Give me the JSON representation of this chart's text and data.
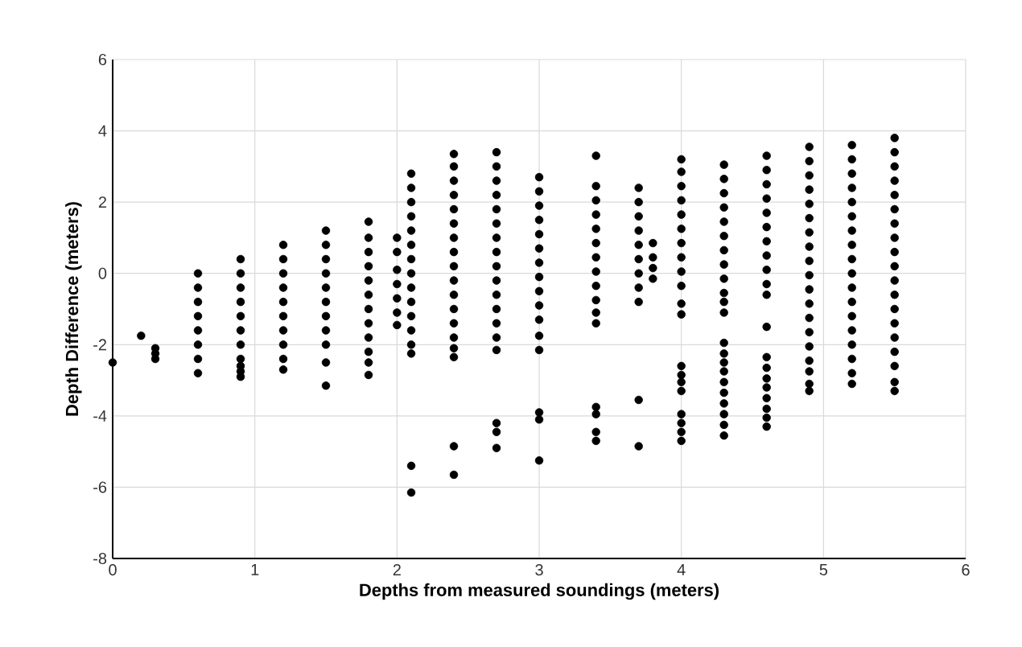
{
  "chart_data": {
    "type": "scatter",
    "xlabel": "Depths from measured soundings (meters)",
    "ylabel": "Depth Difference (meters)",
    "xlim": [
      0,
      6
    ],
    "xticks": [
      0,
      1,
      2,
      3,
      4,
      5,
      6
    ],
    "ylim": [
      -8,
      6
    ],
    "yticks": [
      -8,
      -6,
      -4,
      -2,
      0,
      2,
      4,
      6
    ],
    "grid": true,
    "legend": false,
    "series": [
      {
        "color": "#000000",
        "x": [
          0
        ],
        "values": [
          -2.5
        ]
      },
      {
        "color": "#000000",
        "x": [
          0.2
        ],
        "values": [
          -1.75
        ]
      },
      {
        "color": "#000000",
        "x": [
          0.3,
          0.3,
          0.3
        ],
        "values": [
          -2.1,
          -2.25,
          -2.4
        ]
      },
      {
        "color": "#000000",
        "x": [
          0.6,
          0.6,
          0.6,
          0.6,
          0.6,
          0.6,
          0.6,
          0.6
        ],
        "values": [
          0,
          -0.4,
          -0.8,
          -1.2,
          -1.6,
          -2,
          -2.4,
          -2.8
        ]
      },
      {
        "color": "#000000",
        "x": [
          0.9,
          0.9,
          0.9,
          0.9,
          0.9,
          0.9,
          0.9,
          0.9,
          0.9,
          0.9,
          0.9
        ],
        "values": [
          0.4,
          0,
          -0.4,
          -0.8,
          -1.2,
          -1.6,
          -2,
          -2.4,
          -2.6,
          -2.75,
          -2.9
        ]
      },
      {
        "color": "#000000",
        "x": [
          1.2,
          1.2,
          1.2,
          1.2,
          1.2,
          1.2,
          1.2,
          1.2,
          1.2,
          1.2
        ],
        "values": [
          0.8,
          0.4,
          0,
          -0.4,
          -0.8,
          -1.2,
          -1.6,
          -2,
          -2.4,
          -2.7
        ]
      },
      {
        "color": "#000000",
        "x": [
          1.5,
          1.5,
          1.5,
          1.5,
          1.5,
          1.5,
          1.5,
          1.5,
          1.5,
          1.5,
          1.5
        ],
        "values": [
          1.2,
          0.8,
          0.4,
          0,
          -0.4,
          -0.8,
          -1.2,
          -1.6,
          -2,
          -2.5,
          -3.15
        ]
      },
      {
        "color": "#000000",
        "x": [
          1.8,
          1.8,
          1.8,
          1.8,
          1.8,
          1.8,
          1.8,
          1.8,
          1.8,
          1.8,
          1.8,
          1.8
        ],
        "values": [
          1.45,
          1,
          0.6,
          0.2,
          -0.2,
          -0.6,
          -1,
          -1.4,
          -1.8,
          -2.2,
          -2.5,
          -2.85
        ]
      },
      {
        "color": "#000000",
        "x": [
          2.0,
          2.0,
          2.0,
          2.0,
          2.0,
          2.0,
          2.0
        ],
        "values": [
          1,
          0.6,
          0.1,
          -0.3,
          -0.7,
          -1.1,
          -1.45
        ]
      },
      {
        "color": "#000000",
        "x": [
          2.1,
          2.1,
          2.1,
          2.1,
          2.1,
          2.1,
          2.1,
          2.1,
          2.1,
          2.1,
          2.1,
          2.1,
          2.1,
          2.1,
          2.1,
          2.1
        ],
        "values": [
          2.8,
          2.4,
          2,
          1.6,
          1.2,
          0.8,
          0.4,
          0,
          -0.4,
          -0.8,
          -1.2,
          -1.6,
          -2,
          -2.25,
          -5.4,
          -6.15
        ]
      },
      {
        "color": "#000000",
        "x": [
          2.4,
          2.4,
          2.4,
          2.4,
          2.4,
          2.4,
          2.4,
          2.4,
          2.4,
          2.4,
          2.4,
          2.4,
          2.4,
          2.4,
          2.4,
          2.4,
          2.4,
          2.4
        ],
        "values": [
          3.35,
          3,
          2.6,
          2.2,
          1.8,
          1.4,
          1,
          0.6,
          0.2,
          -0.2,
          -0.6,
          -1,
          -1.4,
          -1.8,
          -2.1,
          -2.35,
          -4.85,
          -5.65
        ]
      },
      {
        "color": "#000000",
        "x": [
          2.7,
          2.7,
          2.7,
          2.7,
          2.7,
          2.7,
          2.7,
          2.7,
          2.7,
          2.7,
          2.7,
          2.7,
          2.7,
          2.7,
          2.7,
          2.7,
          2.7,
          2.7
        ],
        "values": [
          3.4,
          3,
          2.6,
          2.2,
          1.8,
          1.4,
          1,
          0.6,
          0.2,
          -0.2,
          -0.6,
          -1,
          -1.4,
          -1.8,
          -2.15,
          -4.2,
          -4.45,
          -4.9
        ]
      },
      {
        "color": "#000000",
        "x": [
          3.0,
          3.0,
          3.0,
          3.0,
          3.0,
          3.0,
          3.0,
          3.0,
          3.0,
          3.0,
          3.0,
          3.0,
          3.0,
          3.0,
          3.0,
          3.0
        ],
        "values": [
          2.7,
          2.3,
          1.9,
          1.5,
          1.1,
          0.7,
          0.3,
          -0.1,
          -0.5,
          -0.9,
          -1.3,
          -1.75,
          -2.15,
          -3.9,
          -4.1,
          -5.25
        ]
      },
      {
        "color": "#000000",
        "x": [
          3.4,
          3.4,
          3.4,
          3.4,
          3.4,
          3.4,
          3.4,
          3.4,
          3.4,
          3.4,
          3.4,
          3.4,
          3.4,
          3.4,
          3.4,
          3.4
        ],
        "values": [
          3.3,
          2.45,
          2.05,
          1.65,
          1.25,
          0.85,
          0.45,
          0.05,
          -0.35,
          -0.75,
          -1.1,
          -1.4,
          -3.75,
          -3.95,
          -4.45,
          -4.7
        ]
      },
      {
        "color": "#000000",
        "x": [
          3.7,
          3.7,
          3.7,
          3.7,
          3.7,
          3.7,
          3.7,
          3.7,
          3.7,
          3.7,
          3.7
        ],
        "values": [
          2.4,
          2,
          1.6,
          1.2,
          0.8,
          0.4,
          0,
          -0.4,
          -0.8,
          -3.55,
          -4.85
        ]
      },
      {
        "color": "#000000",
        "x": [
          3.8,
          3.8,
          3.8,
          3.8
        ],
        "values": [
          0.85,
          0.45,
          0.15,
          -0.15
        ]
      },
      {
        "color": "#000000",
        "x": [
          4.0,
          4.0,
          4.0,
          4.0,
          4.0,
          4.0,
          4.0,
          4.0,
          4.0,
          4.0,
          4.0,
          4.0,
          4.0,
          4.0,
          4.0,
          4.0,
          4.0,
          4.0,
          4.0,
          4.0
        ],
        "values": [
          3.2,
          2.85,
          2.45,
          2.05,
          1.65,
          1.25,
          0.85,
          0.45,
          0.05,
          -0.35,
          -0.85,
          -1.15,
          -2.6,
          -2.85,
          -3.05,
          -3.3,
          -3.95,
          -4.2,
          -4.45,
          -4.7
        ]
      },
      {
        "color": "#000000",
        "x": [
          4.3,
          4.3,
          4.3,
          4.3,
          4.3,
          4.3,
          4.3,
          4.3,
          4.3,
          4.3,
          4.3,
          4.3,
          4.3,
          4.3,
          4.3,
          4.3,
          4.3,
          4.3,
          4.3,
          4.3,
          4.3,
          4.3
        ],
        "values": [
          3.05,
          2.65,
          2.25,
          1.85,
          1.45,
          1.05,
          0.65,
          0.25,
          -0.15,
          -0.55,
          -0.8,
          -1.1,
          -1.95,
          -2.25,
          -2.5,
          -2.75,
          -3.05,
          -3.35,
          -3.65,
          -3.95,
          -4.25,
          -4.55
        ]
      },
      {
        "color": "#000000",
        "x": [
          4.6,
          4.6,
          4.6,
          4.6,
          4.6,
          4.6,
          4.6,
          4.6,
          4.6,
          4.6,
          4.6,
          4.6,
          4.6,
          4.6,
          4.6,
          4.6,
          4.6,
          4.6,
          4.6,
          4.6
        ],
        "values": [
          3.3,
          2.9,
          2.5,
          2.1,
          1.7,
          1.3,
          0.9,
          0.5,
          0.1,
          -0.3,
          -0.6,
          -1.5,
          -2.35,
          -2.65,
          -2.95,
          -3.2,
          -3.5,
          -3.8,
          -4.05,
          -4.3
        ]
      },
      {
        "color": "#000000",
        "x": [
          4.9,
          4.9,
          4.9,
          4.9,
          4.9,
          4.9,
          4.9,
          4.9,
          4.9,
          4.9,
          4.9,
          4.9,
          4.9,
          4.9,
          4.9,
          4.9,
          4.9,
          4.9,
          4.9
        ],
        "values": [
          3.55,
          3.15,
          2.75,
          2.35,
          1.95,
          1.55,
          1.15,
          0.75,
          0.35,
          -0.05,
          -0.45,
          -0.85,
          -1.25,
          -1.65,
          -2.05,
          -2.45,
          -2.75,
          -3.1,
          -3.3
        ]
      },
      {
        "color": "#000000",
        "x": [
          5.2,
          5.2,
          5.2,
          5.2,
          5.2,
          5.2,
          5.2,
          5.2,
          5.2,
          5.2,
          5.2,
          5.2,
          5.2,
          5.2,
          5.2,
          5.2,
          5.2,
          5.2
        ],
        "values": [
          3.6,
          3.2,
          2.8,
          2.4,
          2,
          1.6,
          1.2,
          0.8,
          0.4,
          0,
          -0.4,
          -0.8,
          -1.2,
          -1.6,
          -2,
          -2.4,
          -2.8,
          -3.1
        ]
      },
      {
        "color": "#000000",
        "x": [
          5.5,
          5.5,
          5.5,
          5.5,
          5.5,
          5.5,
          5.5,
          5.5,
          5.5,
          5.5,
          5.5,
          5.5,
          5.5,
          5.5,
          5.5,
          5.5,
          5.5,
          5.5,
          5.5
        ],
        "values": [
          3.8,
          3.4,
          3,
          2.6,
          2.2,
          1.8,
          1.4,
          1,
          0.6,
          0.2,
          -0.2,
          -0.6,
          -1,
          -1.4,
          -1.8,
          -2.2,
          -2.6,
          -3.05,
          -3.3
        ]
      }
    ]
  }
}
